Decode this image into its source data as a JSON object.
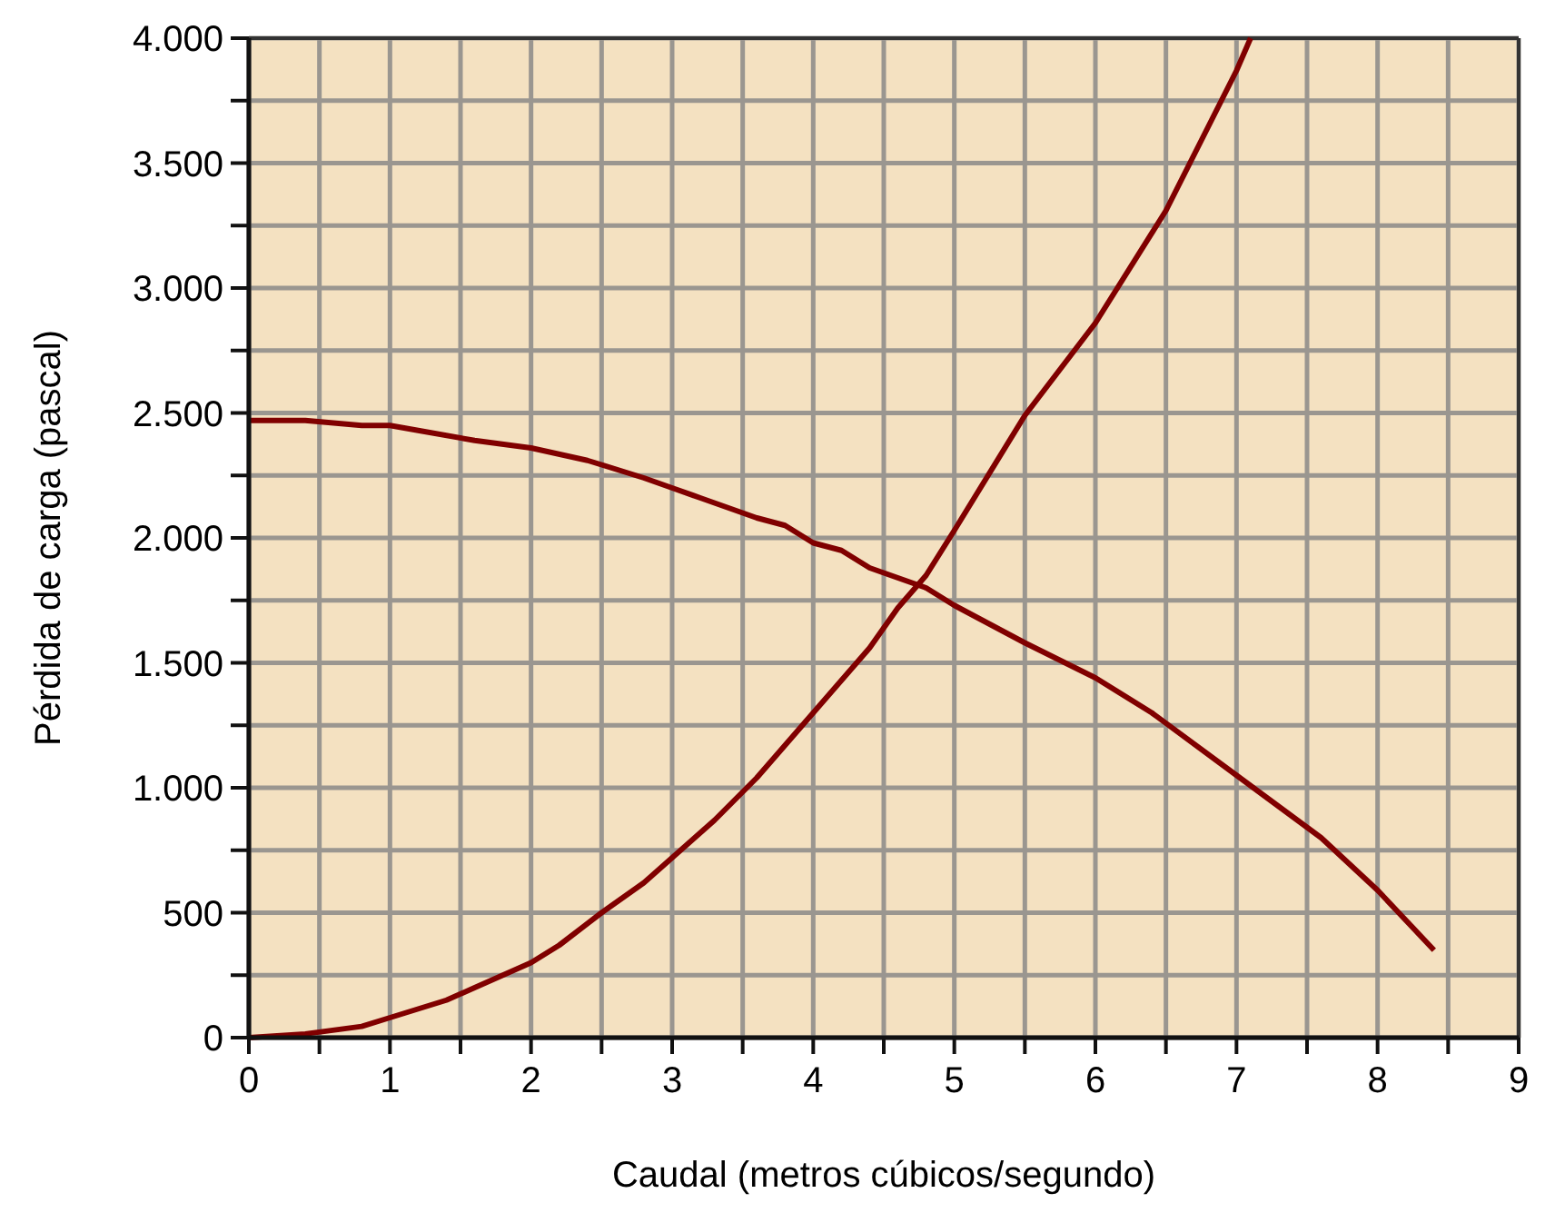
{
  "chart_data": {
    "type": "line",
    "xlabel": "Caudal (metros cúbicos/segundo)",
    "ylabel": "Pérdida de carga (pascal)",
    "xlim": [
      0,
      9
    ],
    "ylim": [
      0,
      4000
    ],
    "xticks": [
      0,
      {
        "value": 0.5,
        "label": null
      },
      1,
      {
        "value": 1.5,
        "label": null
      },
      2,
      {
        "value": 2.5,
        "label": null
      },
      3,
      {
        "value": 3.5,
        "label": null
      },
      4,
      {
        "value": 4.5,
        "label": null
      },
      5,
      {
        "value": 5.5,
        "label": null
      },
      6,
      {
        "value": 6.5,
        "label": null
      },
      7,
      {
        "value": 7.5,
        "label": null
      },
      8,
      {
        "value": 8.5,
        "label": null
      },
      9
    ],
    "yticks": [
      0,
      {
        "value": 250,
        "label": null
      },
      500,
      {
        "value": 750,
        "label": null
      },
      {
        "value": 1000,
        "label": "1.000"
      },
      {
        "value": 1250,
        "label": null
      },
      {
        "value": 1500,
        "label": "1.500"
      },
      {
        "value": 1750,
        "label": null
      },
      {
        "value": 2000,
        "label": "2.000"
      },
      {
        "value": 2250,
        "label": null
      },
      {
        "value": 2500,
        "label": "2.500"
      },
      {
        "value": 2750,
        "label": null
      },
      {
        "value": 3000,
        "label": "3.000"
      },
      {
        "value": 3250,
        "label": null
      },
      {
        "value": 3500,
        "label": "3.500"
      },
      {
        "value": 3750,
        "label": null
      },
      {
        "value": 4000,
        "label": "4.000"
      }
    ],
    "grid": true,
    "marker": "none",
    "line_style": "solid",
    "series": [
      {
        "color": "#800000",
        "x": [
          0,
          0.4,
          0.8,
          1,
          1.4,
          1.6,
          2,
          2.2,
          2.5,
          2.8,
          3,
          3.3,
          3.6,
          3.8,
          4,
          4.4,
          4.6,
          4.8,
          5,
          5.5,
          6,
          6.5,
          7,
          7.1
        ],
        "values": [
          0,
          15,
          45,
          80,
          150,
          200,
          300,
          370,
          500,
          620,
          720,
          870,
          1040,
          1170,
          1300,
          1560,
          1720,
          1850,
          2030,
          2490,
          2860,
          3310,
          3870,
          4000
        ]
      },
      {
        "color": "#800000",
        "x": [
          0,
          0.4,
          0.8,
          1,
          1.2,
          1.6,
          2,
          2.4,
          2.8,
          3,
          3.2,
          3.6,
          3.8,
          4,
          4.2,
          4.4,
          4.8,
          5,
          5.5,
          6,
          6.4,
          7,
          7.6,
          8,
          8.4
        ],
        "values": [
          2470,
          2470,
          2450,
          2450,
          2430,
          2390,
          2360,
          2310,
          2240,
          2200,
          2160,
          2080,
          2050,
          1980,
          1950,
          1880,
          1800,
          1730,
          1580,
          1440,
          1300,
          1050,
          800,
          590,
          350
        ]
      }
    ]
  }
}
